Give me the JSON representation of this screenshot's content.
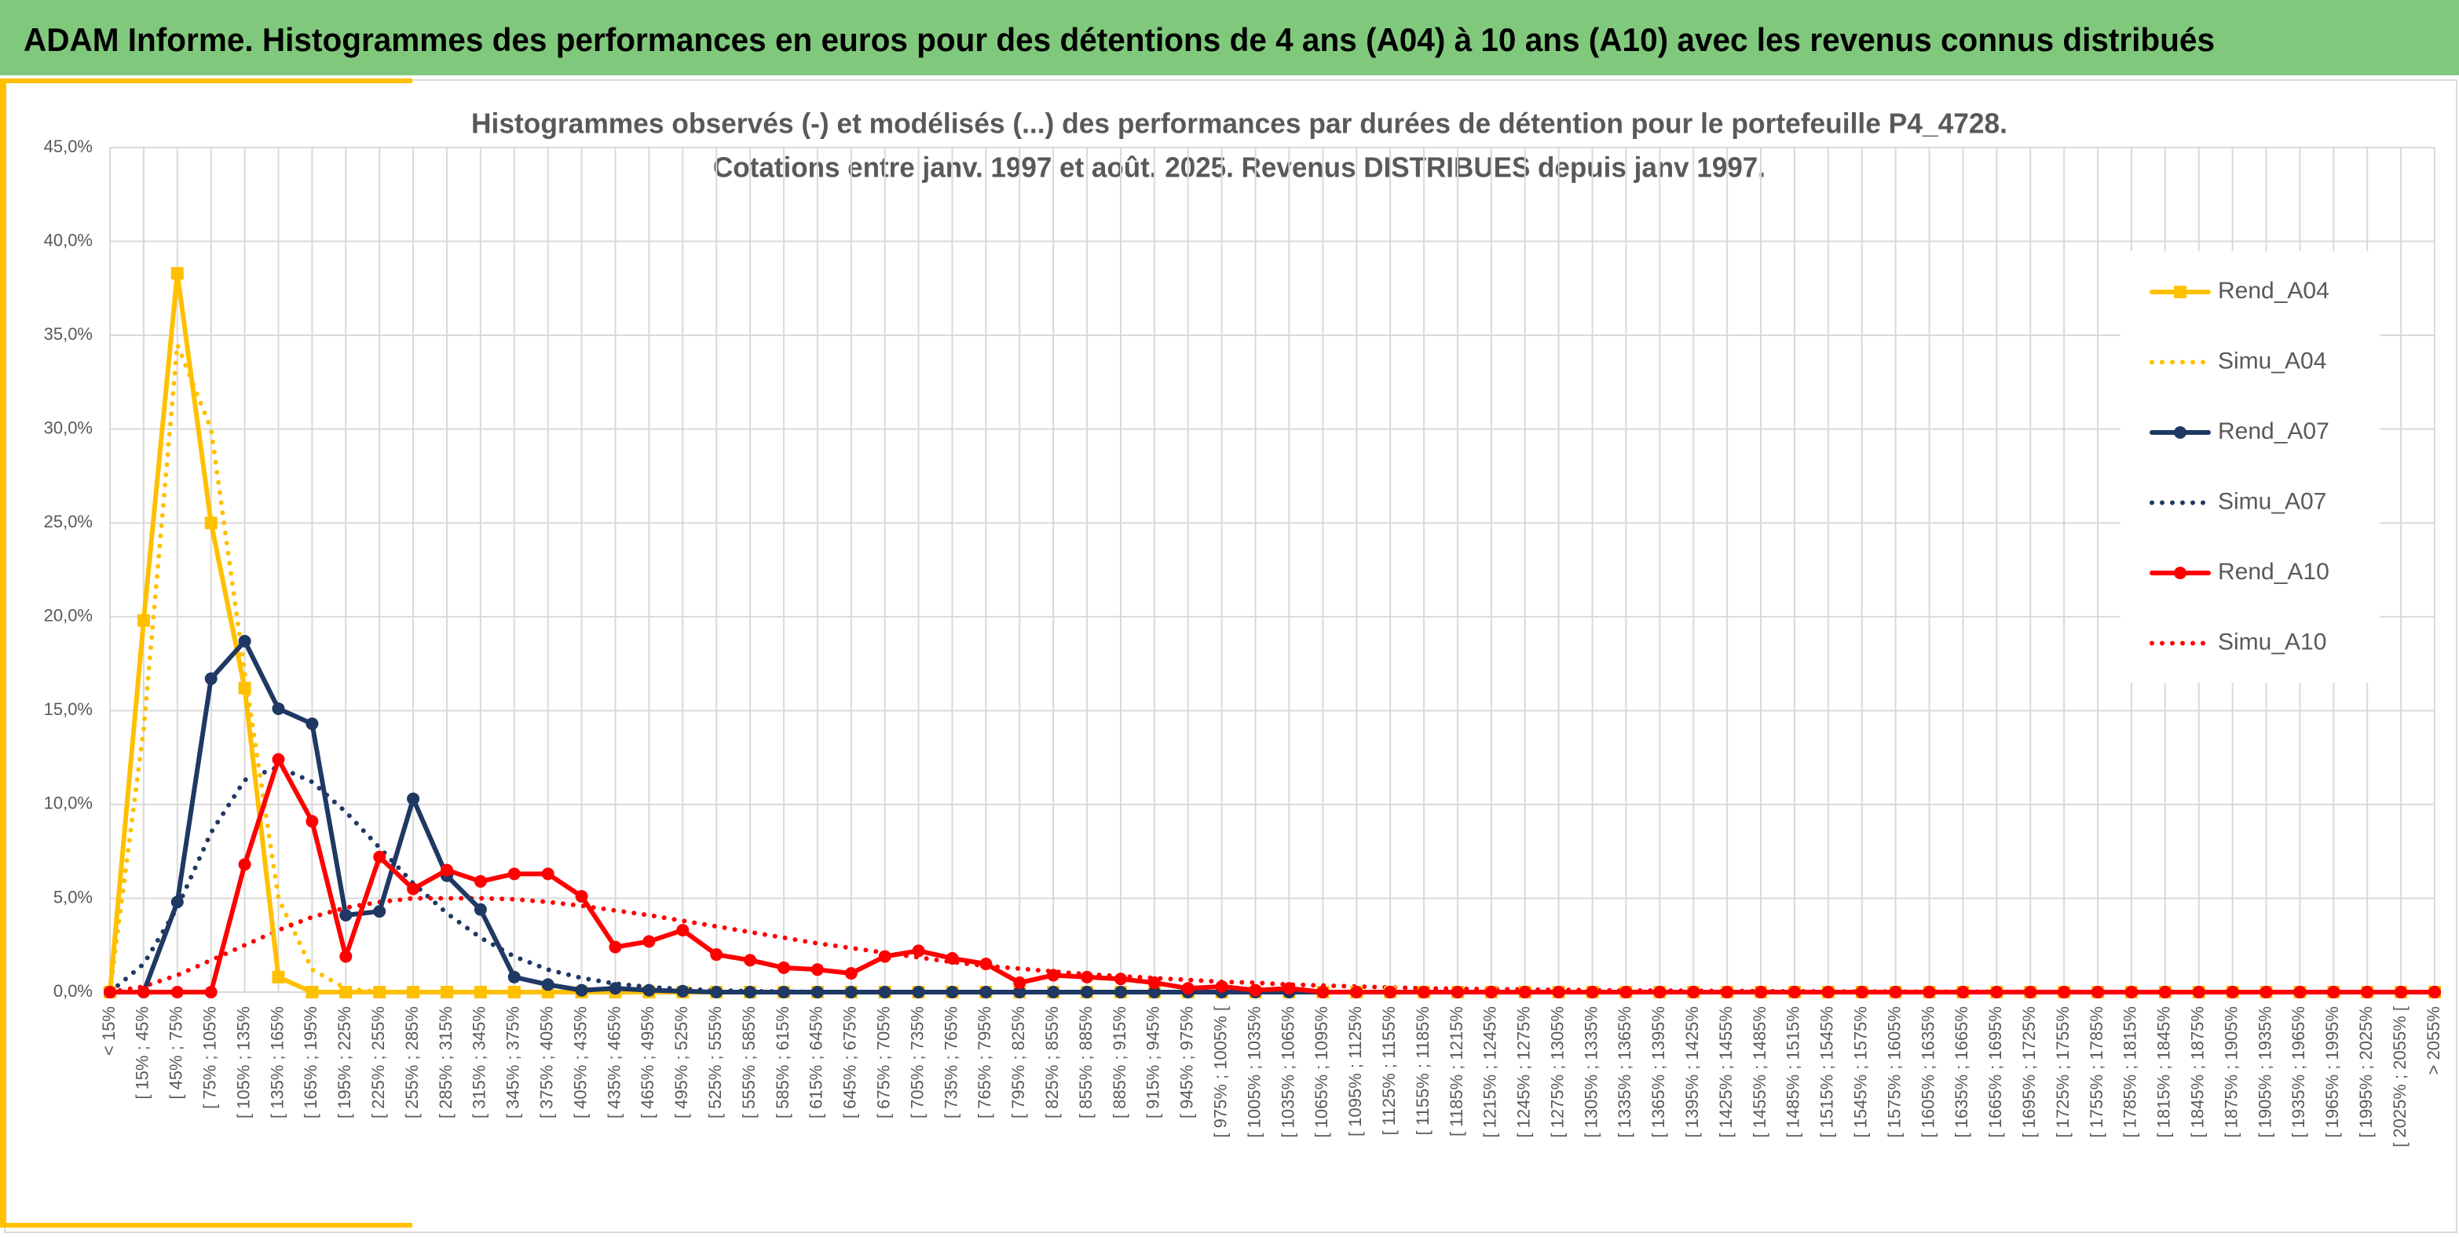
{
  "header": {
    "title": "ADAM Informe. Histogrammes des performances en euros pour des détentions de 4 ans (A04) à 10 ans (A10) avec les revenus connus distribués"
  },
  "chart_data": {
    "type": "line",
    "title": [
      "Histogrammes observés (-) et modélisés (...) des performances par durées de détention pour le portefeuille P4_4728.",
      "Cotations entre janv. 1997 et août. 2025. Revenus DISTRIBUES depuis janv 1997."
    ],
    "categories": [
      "< 15%",
      "[ 15% ; 45%",
      "[ 45% ; 75%",
      "[ 75% ; 105%",
      "[ 105% ; 135%",
      "[ 135% ; 165%",
      "[ 165% ; 195%",
      "[ 195% ; 225%",
      "[ 225% ; 255%",
      "[ 255% ; 285%",
      "[ 285% ; 315%",
      "[ 315% ; 345%",
      "[ 345% ; 375%",
      "[ 375% ; 405%",
      "[ 405% ; 435%",
      "[ 435% ; 465%",
      "[ 465% ; 495%",
      "[ 495% ; 525%",
      "[ 525% ; 555%",
      "[ 555% ; 585%",
      "[ 585% ; 615%",
      "[ 615% ; 645%",
      "[ 645% ; 675%",
      "[ 675% ; 705%",
      "[ 705% ; 735%",
      "[ 735% ; 765%",
      "[ 765% ; 795%",
      "[ 795% ; 825%",
      "[ 825% ; 855%",
      "[ 855% ; 885%",
      "[ 885% ; 915%",
      "[ 915% ; 945%",
      "[ 945% ; 975%",
      "[ 975% ; 1005% [",
      "[ 1005% ; 1035%",
      "[ 1035% ; 1065%",
      "[ 1065% ; 1095%",
      "[ 1095% ; 1125%",
      "[ 1125% ; 1155%",
      "[ 1155% ; 1185%",
      "[ 1185% ; 1215%",
      "[ 1215% ; 1245%",
      "[ 1245% ; 1275%",
      "[ 1275% ; 1305%",
      "[ 1305% ; 1335%",
      "[ 1335% ; 1365%",
      "[ 1365% ; 1395%",
      "[ 1395% ; 1425%",
      "[ 1425% ; 1455%",
      "[ 1455% ; 1485%",
      "[ 1485% ; 1515%",
      "[ 1515% ; 1545%",
      "[ 1545% ; 1575%",
      "[ 1575% ; 1605%",
      "[ 1605% ; 1635%",
      "[ 1635% ; 1665%",
      "[ 1665% ; 1695%",
      "[ 1695% ; 1725%",
      "[ 1725% ; 1755%",
      "[ 1755% ; 1785%",
      "[ 1785% ; 1815%",
      "[ 1815% ; 1845%",
      "[ 1845% ; 1875%",
      "[ 1875% ; 1905%",
      "[ 1905% ; 1935%",
      "[ 1935% ; 1965%",
      "[ 1965% ; 1995%",
      "[ 1995% ; 2025%",
      "[ 2025% ; 2055% [",
      "> 2055%"
    ],
    "series": [
      {
        "name": "Rend_A04",
        "color": "#ffc000",
        "line_style": "solid",
        "marker": "square",
        "values": [
          0,
          19.8,
          38.3,
          25.0,
          16.2,
          0.8,
          0,
          0,
          0,
          0,
          0,
          0,
          0,
          0,
          0,
          0,
          0,
          0,
          0,
          0,
          0,
          0,
          0,
          0,
          0,
          0,
          0,
          0,
          0,
          0,
          0,
          0,
          0,
          0,
          0,
          0,
          0,
          0,
          0,
          0,
          0,
          0,
          0,
          0,
          0,
          0,
          0,
          0,
          0,
          0,
          0,
          0,
          0,
          0,
          0,
          0,
          0,
          0,
          0,
          0,
          0,
          0,
          0,
          0,
          0,
          0,
          0,
          0,
          0,
          0
        ]
      },
      {
        "name": "Simu_A04",
        "color": "#ffc000",
        "line_style": "dotted",
        "marker": "none",
        "values": [
          0,
          14,
          34.5,
          30,
          17,
          5,
          1.2,
          0.2,
          0,
          0,
          0,
          0,
          0,
          0,
          0,
          0,
          0,
          0,
          0,
          0,
          0,
          0,
          0,
          0,
          0,
          0,
          0,
          0,
          0,
          0,
          0,
          0,
          0,
          0,
          0,
          0,
          0,
          0,
          0,
          0,
          0,
          0,
          0,
          0,
          0,
          0,
          0,
          0,
          0,
          0,
          0,
          0,
          0,
          0,
          0,
          0,
          0,
          0,
          0,
          0,
          0,
          0,
          0,
          0,
          0,
          0,
          0,
          0,
          0,
          0
        ]
      },
      {
        "name": "Rend_A07",
        "color": "#1f3864",
        "line_style": "solid",
        "marker": "circle",
        "values": [
          0,
          0,
          4.8,
          16.7,
          18.7,
          15.1,
          14.3,
          4.1,
          4.3,
          10.3,
          6.2,
          4.4,
          0.8,
          0.4,
          0.1,
          0.2,
          0.1,
          0.05,
          0,
          0,
          0,
          0,
          0,
          0,
          0,
          0,
          0,
          0,
          0,
          0,
          0,
          0,
          0,
          0,
          0,
          0,
          0,
          0,
          0,
          0,
          0,
          0,
          0,
          0,
          0,
          0,
          0,
          0,
          0,
          0,
          0,
          0,
          0,
          0,
          0,
          0,
          0,
          0,
          0,
          0,
          0,
          0,
          0,
          0,
          0,
          0,
          0,
          0,
          0,
          0
        ]
      },
      {
        "name": "Simu_A07",
        "color": "#1f3864",
        "line_style": "dotted",
        "marker": "none",
        "values": [
          0,
          1.5,
          4.5,
          8.5,
          11.3,
          12,
          11.2,
          9.6,
          7.7,
          5.8,
          4.2,
          2.9,
          1.9,
          1.2,
          0.75,
          0.45,
          0.27,
          0.16,
          0.09,
          0.05,
          0.03,
          0,
          0,
          0,
          0,
          0,
          0,
          0,
          0,
          0,
          0,
          0,
          0,
          0,
          0,
          0,
          0,
          0,
          0,
          0,
          0,
          0,
          0,
          0,
          0,
          0,
          0,
          0,
          0,
          0,
          0,
          0,
          0,
          0,
          0,
          0,
          0,
          0,
          0,
          0,
          0,
          0,
          0,
          0,
          0,
          0,
          0,
          0,
          0,
          0
        ]
      },
      {
        "name": "Rend_A10",
        "color": "#ff0000",
        "line_style": "solid",
        "marker": "circle",
        "values": [
          0,
          0,
          0,
          0,
          6.8,
          12.4,
          9.1,
          1.9,
          7.2,
          5.5,
          6.5,
          5.9,
          6.3,
          6.3,
          5.1,
          2.4,
          2.7,
          3.3,
          2.0,
          1.7,
          1.3,
          1.2,
          1.0,
          1.9,
          2.2,
          1.8,
          1.5,
          0.5,
          0.9,
          0.8,
          0.7,
          0.5,
          0.2,
          0.3,
          0.1,
          0.2,
          0,
          0,
          0,
          0,
          0,
          0,
          0,
          0,
          0,
          0,
          0,
          0,
          0,
          0,
          0,
          0,
          0,
          0,
          0,
          0,
          0,
          0,
          0,
          0,
          0,
          0,
          0,
          0,
          0,
          0,
          0,
          0,
          0,
          0
        ]
      },
      {
        "name": "Simu_A10",
        "color": "#ff0000",
        "line_style": "dotted",
        "marker": "none",
        "values": [
          0,
          0.3,
          0.9,
          1.7,
          2.5,
          3.3,
          4.0,
          4.5,
          4.8,
          5.0,
          5.0,
          5.0,
          4.95,
          4.8,
          4.6,
          4.35,
          4.1,
          3.8,
          3.5,
          3.2,
          2.9,
          2.6,
          2.35,
          2.1,
          1.85,
          1.6,
          1.4,
          1.25,
          1.1,
          0.95,
          0.85,
          0.75,
          0.65,
          0.55,
          0.5,
          0.4,
          0.35,
          0.3,
          0.25,
          0.2,
          0.18,
          0.16,
          0.14,
          0.12,
          0.1,
          0.09,
          0.08,
          0.07,
          0.06,
          0.05,
          0.04,
          0.04,
          0.03,
          0.03,
          0.02,
          0.02,
          0.02,
          0.01,
          0.01,
          0.01,
          0,
          0,
          0,
          0,
          0,
          0,
          0,
          0,
          0,
          0
        ]
      }
    ],
    "ylim": [
      0,
      45
    ],
    "yticks": [
      {
        "value": 0,
        "label": "0,0%"
      },
      {
        "value": 5,
        "label": "5,0%"
      },
      {
        "value": 10,
        "label": "10,0%"
      },
      {
        "value": 15,
        "label": "15,0%"
      },
      {
        "value": 20,
        "label": "20,0%"
      },
      {
        "value": 25,
        "label": "25,0%"
      },
      {
        "value": 30,
        "label": "30,0%"
      },
      {
        "value": 35,
        "label": "35,0%"
      },
      {
        "value": 40,
        "label": "40,0%"
      },
      {
        "value": 45,
        "label": "45,0%"
      }
    ],
    "grid": true,
    "legend": "right"
  }
}
